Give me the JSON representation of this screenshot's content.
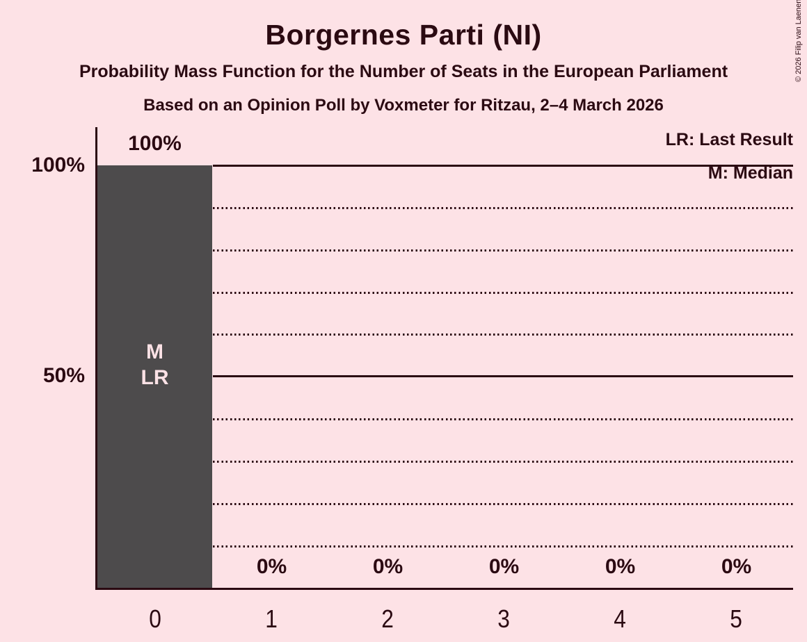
{
  "copyright": "© 2026 Filip van Laenen",
  "colors": {
    "background": "#FDE2E6",
    "ink": "#2B0A12",
    "bar": "#4D4B4C",
    "bar_annotation_text": "#FDE2E6"
  },
  "chart_data": {
    "type": "bar",
    "title": "Borgernes Parti (NI)",
    "subtitle": "Probability Mass Function for the Number of Seats in the European Parliament",
    "source_note": "Based on an Opinion Poll by Voxmeter for Ritzau, 2–4 March 2026",
    "categories": [
      "0",
      "1",
      "2",
      "3",
      "4",
      "5"
    ],
    "values": [
      100,
      0,
      0,
      0,
      0,
      0
    ],
    "value_labels": [
      "100%",
      "0%",
      "0%",
      "0%",
      "0%",
      "0%"
    ],
    "ylim": [
      0,
      100
    ],
    "y_tick_labels": [
      "100%",
      "50%"
    ],
    "gridlines": {
      "solid_percent": [
        100,
        50,
        0
      ],
      "dotted_percent": [
        90,
        80,
        70,
        60,
        40,
        30,
        20,
        10
      ]
    },
    "legend": {
      "lr": "LR: Last Result",
      "m": "M: Median"
    },
    "legend_position": "top-right",
    "bar_annotation": {
      "category": "0",
      "text": "M\nLR"
    }
  }
}
